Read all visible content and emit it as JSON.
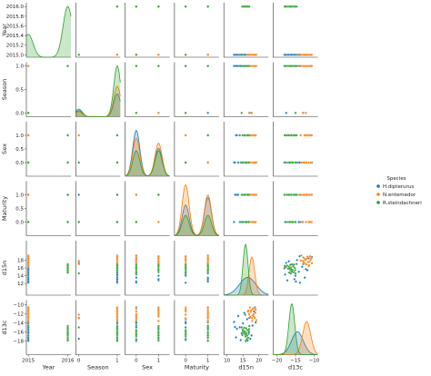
{
  "chart_data": {
    "type": "scatter",
    "subtype": "pairplot",
    "variables": [
      "Year",
      "Season",
      "Sex",
      "Maturity",
      "d15n",
      "d13c"
    ],
    "axis_ranges": {
      "Year": [
        2014.95,
        2016.08
      ],
      "Season": [
        -0.08,
        1.08
      ],
      "Sex": [
        -0.5,
        1.5
      ],
      "Maturity": [
        -0.5,
        1.5
      ],
      "d15n": [
        9,
        23
      ],
      "d13c": [
        -21,
        -9
      ]
    },
    "ticks": {
      "Year": {
        "x": [
          {
            "v": 2015,
            "label": "2015"
          },
          {
            "v": 2016,
            "label": "2016"
          }
        ],
        "y": [
          {
            "v": 2015.0,
            "label": "2015.0"
          },
          {
            "v": 2015.2,
            "label": "2015.2"
          },
          {
            "v": 2015.4,
            "label": "2015.4"
          },
          {
            "v": 2015.6,
            "label": "2015.6"
          },
          {
            "v": 2015.8,
            "label": "2015.8"
          },
          {
            "v": 2016.0,
            "label": "2016.0"
          }
        ]
      },
      "Season": {
        "x": [
          {
            "v": 0,
            "label": "0"
          },
          {
            "v": 1,
            "label": "1"
          }
        ],
        "y": [
          {
            "v": 0.0,
            "label": "0.0"
          },
          {
            "v": 0.5,
            "label": "0.5"
          },
          {
            "v": 1.0,
            "label": "1.0"
          }
        ]
      },
      "Sex": {
        "x": [
          {
            "v": 0,
            "label": "0"
          },
          {
            "v": 1,
            "label": "1"
          }
        ],
        "y": [
          {
            "v": 0.0,
            "label": "0.0"
          },
          {
            "v": 0.5,
            "label": "0.5"
          },
          {
            "v": 1.0,
            "label": "1.0"
          }
        ]
      },
      "Maturity": {
        "x": [
          {
            "v": 0,
            "label": "0"
          },
          {
            "v": 1,
            "label": "1"
          }
        ],
        "y": [
          {
            "v": 0.0,
            "label": "0.0"
          },
          {
            "v": 0.5,
            "label": "0.5"
          },
          {
            "v": 1.0,
            "label": "1.0"
          }
        ]
      },
      "d15n": {
        "x": [
          {
            "v": 10,
            "label": "10"
          },
          {
            "v": 15,
            "label": "15"
          },
          {
            "v": 20,
            "label": "20"
          }
        ],
        "y": [
          {
            "v": 12,
            "label": "12"
          },
          {
            "v": 14,
            "label": "14"
          },
          {
            "v": 16,
            "label": "16"
          },
          {
            "v": 18,
            "label": "18"
          }
        ]
      },
      "d13c": {
        "x": [
          {
            "v": -20,
            "label": "−20"
          },
          {
            "v": -15,
            "label": "−15"
          },
          {
            "v": -10,
            "label": "−10"
          }
        ],
        "y": [
          {
            "v": -18,
            "label": "−18"
          },
          {
            "v": -16,
            "label": "−16"
          },
          {
            "v": -14,
            "label": "−14"
          },
          {
            "v": -12,
            "label": "−12"
          },
          {
            "v": -10,
            "label": "−10"
          }
        ]
      }
    },
    "legend": {
      "title": "Species",
      "placement": "right",
      "entries": [
        {
          "name": "H.dipterurus",
          "color": "#1f77b4"
        },
        {
          "name": "N.entemedor",
          "color": "#ff7f0e"
        },
        {
          "name": "R.steindachneri",
          "color": "#2ca02c"
        }
      ]
    },
    "kde_peaks": {
      "Year": [
        {
          "species": "R.steindachneri",
          "modes": [
            [
              2015.0,
              0.45
            ],
            [
              2016.0,
              1.0
            ]
          ],
          "bw": 0.12
        }
      ],
      "Season": [
        {
          "species": "H.dipterurus",
          "modes": [
            [
              0,
              0.12
            ],
            [
              1,
              0.45
            ]
          ],
          "bw": 0.09
        },
        {
          "species": "N.entemedor",
          "modes": [
            [
              0,
              0.1
            ],
            [
              1,
              0.6
            ]
          ],
          "bw": 0.09
        },
        {
          "species": "R.steindachneri",
          "modes": [
            [
              0,
              0.15
            ],
            [
              1,
              1.0
            ]
          ],
          "bw": 0.09
        }
      ],
      "Sex": [
        {
          "species": "H.dipterurus",
          "modes": [
            [
              0,
              0.9
            ],
            [
              1,
              0.55
            ]
          ],
          "bw": 0.16
        },
        {
          "species": "N.entemedor",
          "modes": [
            [
              0,
              0.75
            ],
            [
              1,
              0.65
            ]
          ],
          "bw": 0.16
        },
        {
          "species": "R.steindachneri",
          "modes": [
            [
              0,
              0.5
            ],
            [
              1,
              0.5
            ]
          ],
          "bw": 0.16
        }
      ],
      "Maturity": [
        {
          "species": "H.dipterurus",
          "modes": [
            [
              0,
              0.6
            ],
            [
              1,
              0.75
            ]
          ],
          "bw": 0.16
        },
        {
          "species": "N.entemedor",
          "modes": [
            [
              0,
              1.0
            ],
            [
              1,
              0.8
            ]
          ],
          "bw": 0.16
        },
        {
          "species": "R.steindachneri",
          "modes": [
            [
              0,
              0.4
            ],
            [
              1,
              0.4
            ]
          ],
          "bw": 0.16
        }
      ],
      "d15n": [
        {
          "species": "H.dipterurus",
          "modes": [
            [
              16.5,
              0.35
            ]
          ],
          "bw": 2.6
        },
        {
          "species": "N.entemedor",
          "modes": [
            [
              17.8,
              0.75
            ]
          ],
          "bw": 0.9
        },
        {
          "species": "R.steindachneri",
          "modes": [
            [
              15.8,
              1.0
            ]
          ],
          "bw": 0.8
        }
      ],
      "d13c": [
        {
          "species": "H.dipterurus",
          "modes": [
            [
              -14.5,
              0.45
            ]
          ],
          "bw": 1.6
        },
        {
          "species": "N.entemedor",
          "modes": [
            [
              -12.0,
              0.65
            ]
          ],
          "bw": 1.1
        },
        {
          "species": "R.steindachneri",
          "modes": [
            [
              -16.0,
              1.0
            ]
          ],
          "bw": 0.8
        }
      ]
    },
    "observations": {
      "H.dipterurus": {
        "Year": [
          2015,
          2015,
          2015,
          2015,
          2015,
          2015,
          2015,
          2015,
          2015,
          2015,
          2015,
          2015,
          2015,
          2015,
          2015,
          2015,
          2015,
          2015,
          2015,
          2015,
          2015,
          2015
        ],
        "Season": [
          1,
          1,
          1,
          1,
          1,
          1,
          1,
          1,
          1,
          1,
          0,
          0,
          1,
          1,
          1,
          1,
          1,
          1,
          1,
          1,
          1,
          1
        ],
        "Sex": [
          0,
          1,
          0,
          1,
          0,
          0,
          1,
          0,
          0,
          1,
          0,
          1,
          0,
          0,
          1,
          0,
          1,
          0,
          0,
          1,
          0,
          0
        ],
        "Maturity": [
          0,
          1,
          1,
          0,
          1,
          0,
          1,
          1,
          0,
          1,
          1,
          0,
          1,
          1,
          0,
          1,
          1,
          0,
          1,
          0,
          1,
          1
        ],
        "d15n": [
          12.2,
          12.8,
          13.5,
          14.0,
          14.6,
          15.0,
          15.4,
          15.9,
          16.3,
          16.7,
          17.0,
          17.3,
          17.7,
          18.0,
          18.5,
          19.0,
          13.1,
          14.3,
          15.7,
          16.9,
          18.8,
          12.5
        ],
        "d13c": [
          -13.8,
          -17.2,
          -12.5,
          -15.0,
          -16.3,
          -14.1,
          -11.8,
          -18.0,
          -13.2,
          -15.6,
          -12.9,
          -17.5,
          -16.8,
          -14.6,
          -11.5,
          -13.9,
          -15.3,
          -17.8,
          -12.2,
          -16.0,
          -10.6,
          -14.9
        ]
      },
      "N.entemedor": {
        "Year": [
          2015,
          2015,
          2015,
          2015,
          2015,
          2015,
          2015,
          2015,
          2015,
          2015,
          2015,
          2015,
          2015,
          2015,
          2015,
          2015,
          2015,
          2015,
          2015,
          2015,
          2015,
          2015
        ],
        "Season": [
          1,
          1,
          1,
          1,
          1,
          0,
          1,
          1,
          1,
          1,
          1,
          1,
          0,
          1,
          1,
          1,
          1,
          1,
          1,
          1,
          1,
          1
        ],
        "Sex": [
          0,
          1,
          1,
          0,
          1,
          0,
          0,
          1,
          1,
          0,
          1,
          0,
          1,
          1,
          0,
          0,
          1,
          1,
          0,
          1,
          0,
          1
        ],
        "Maturity": [
          0,
          1,
          0,
          1,
          1,
          0,
          1,
          0,
          1,
          0,
          1,
          1,
          0,
          1,
          0,
          1,
          0,
          1,
          1,
          0,
          1,
          1
        ],
        "d15n": [
          16.5,
          16.9,
          17.2,
          17.4,
          17.6,
          17.8,
          18.0,
          18.2,
          18.4,
          18.6,
          18.9,
          19.2,
          17.0,
          17.5,
          18.1,
          18.7,
          16.7,
          17.9,
          18.3,
          19.0,
          17.3,
          18.5
        ],
        "d13c": [
          -11.5,
          -12.0,
          -10.6,
          -12.8,
          -11.2,
          -13.0,
          -12.4,
          -11.0,
          -12.6,
          -10.8,
          -11.8,
          -13.4,
          -12.2,
          -11.6,
          -10.9,
          -12.9,
          -11.3,
          -13.6,
          -12.1,
          -11.1,
          -12.7,
          -10.7
        ]
      },
      "R.steindachneri": {
        "Year": [
          2015,
          2016,
          2016,
          2016,
          2016,
          2016,
          2016,
          2016,
          2016,
          2016,
          2016,
          2016,
          2016,
          2016,
          2016,
          2016,
          2016,
          2016,
          2016,
          2016,
          2016,
          2016
        ],
        "Season": [
          0,
          1,
          1,
          1,
          1,
          1,
          1,
          1,
          1,
          1,
          1,
          1,
          1,
          1,
          1,
          1,
          1,
          1,
          1,
          1,
          1,
          1
        ],
        "Sex": [
          0,
          1,
          0,
          1,
          0,
          1,
          0,
          1,
          0,
          1,
          0,
          1,
          0,
          1,
          0,
          1,
          0,
          1,
          0,
          1,
          0,
          1
        ],
        "Maturity": [
          0,
          1,
          0,
          1,
          0,
          1,
          0,
          1,
          0,
          1,
          0,
          1,
          0,
          1,
          0,
          1,
          0,
          1,
          0,
          1,
          0,
          1
        ],
        "d15n": [
          14.6,
          14.9,
          15.1,
          15.3,
          15.5,
          15.7,
          15.8,
          16.0,
          16.1,
          16.3,
          16.4,
          16.6,
          16.8,
          17.0,
          15.0,
          15.6,
          16.2,
          16.9,
          14.8,
          15.4,
          15.9,
          16.5
        ],
        "d13c": [
          -15.0,
          -15.5,
          -16.0,
          -16.3,
          -15.8,
          -16.6,
          -17.0,
          -15.2,
          -16.2,
          -16.8,
          -15.6,
          -17.3,
          -16.4,
          -14.7,
          -15.9,
          -16.1,
          -17.6,
          -15.4,
          -16.7,
          -15.1,
          -16.5,
          -17.9
        ]
      }
    }
  }
}
